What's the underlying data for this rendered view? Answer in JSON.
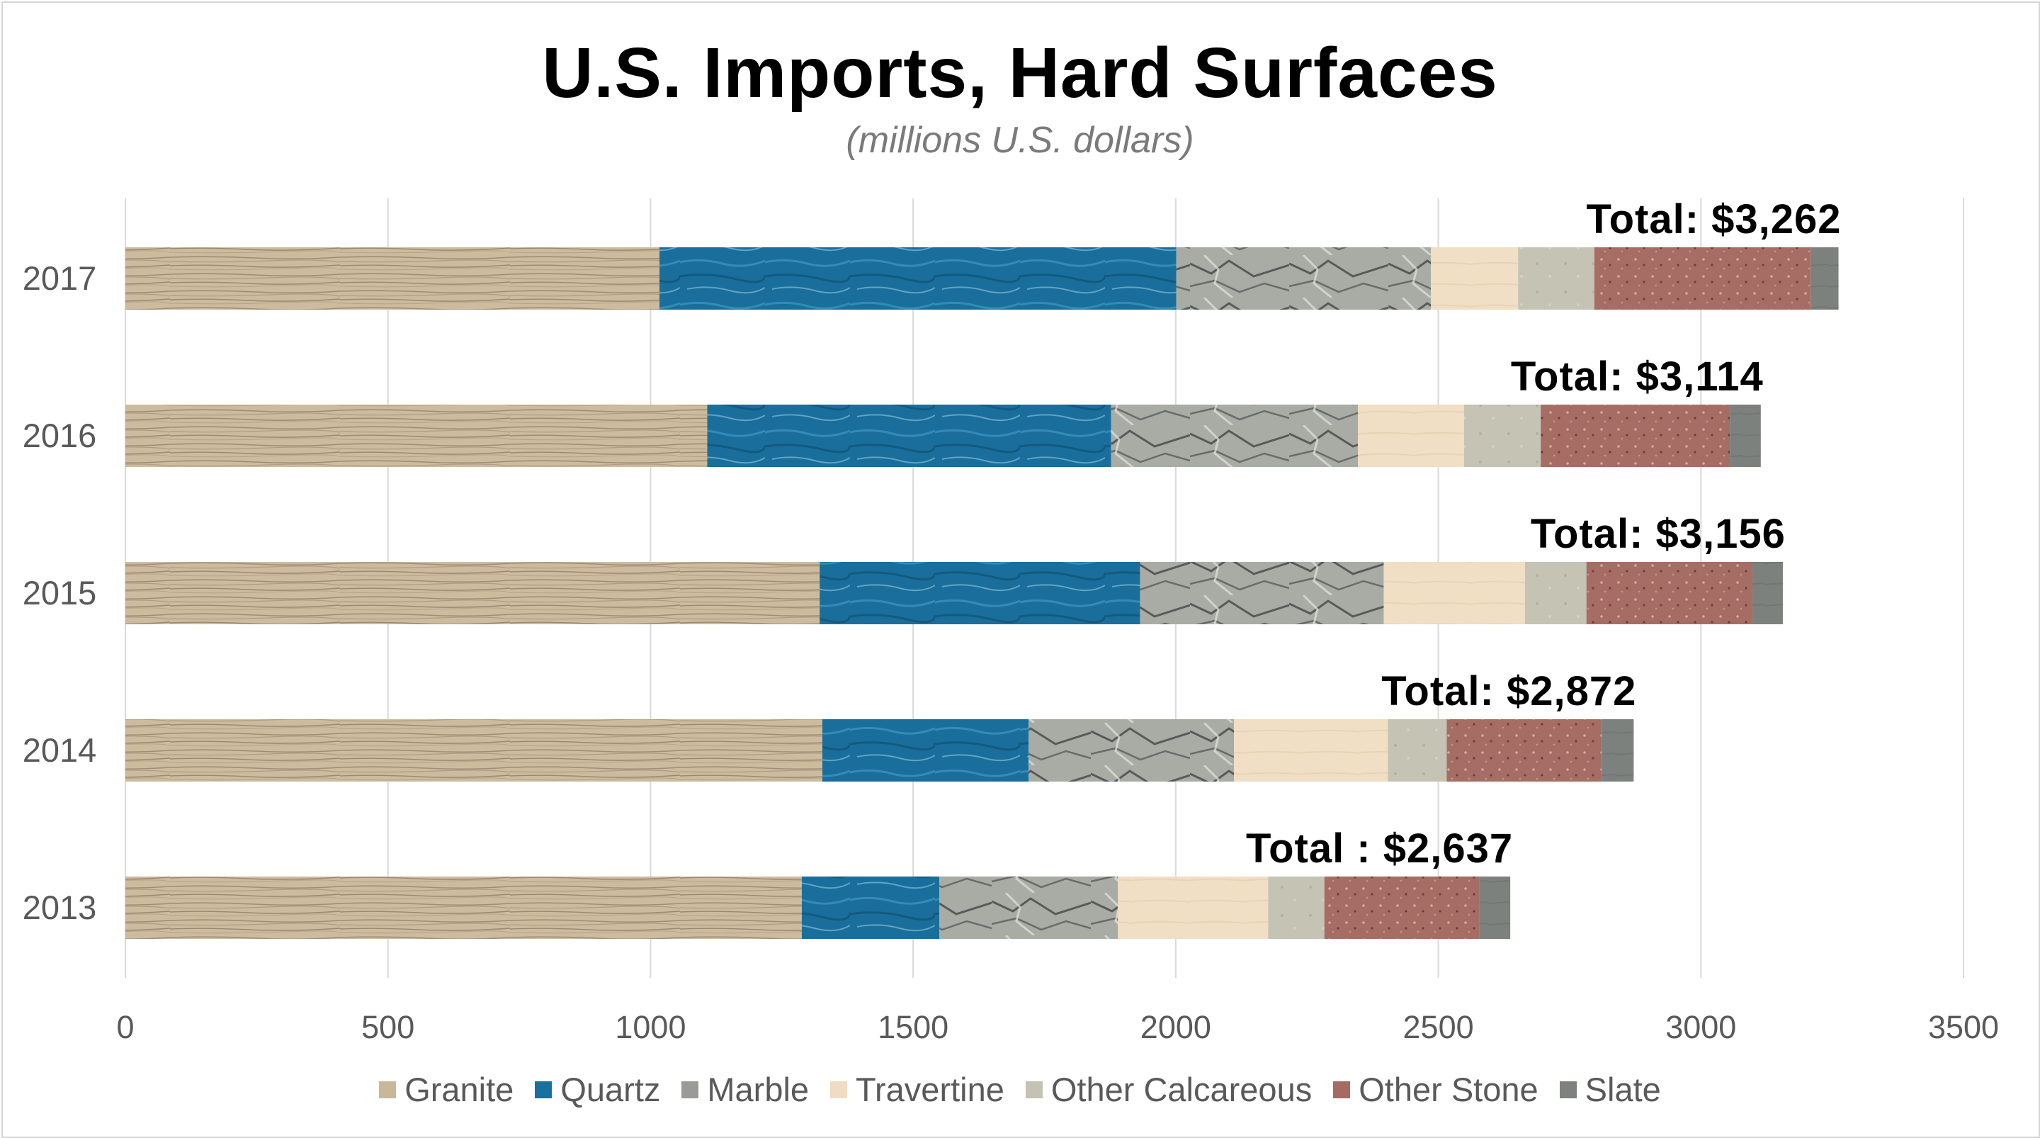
{
  "title": "U.S. Imports, Hard Surfaces",
  "subtitle": "(millions U.S. dollars)",
  "chart_data": {
    "type": "bar",
    "orientation": "horizontal",
    "stacked": true,
    "categories": [
      "2017",
      "2016",
      "2015",
      "2014",
      "2013"
    ],
    "series": [
      {
        "name": "Granite",
        "color": "#c9b79a",
        "values": [
          1017,
          1108,
          1322,
          1327,
          1288
        ]
      },
      {
        "name": "Quartz",
        "color": "#1a6f9c",
        "values": [
          984,
          769,
          610,
          393,
          262
        ]
      },
      {
        "name": "Marble",
        "color": "#9a9a96",
        "values": [
          485,
          470,
          464,
          391,
          340
        ]
      },
      {
        "name": "Travertine",
        "color": "#efdcc2",
        "values": [
          166,
          202,
          269,
          293,
          286
        ]
      },
      {
        "name": "Other Calcareous",
        "color": "#c3c2b3",
        "values": [
          145,
          146,
          117,
          112,
          107
        ]
      },
      {
        "name": "Other Stone",
        "color": "#a56b63",
        "values": [
          412,
          360,
          316,
          295,
          295
        ]
      },
      {
        "name": "Slate",
        "color": "#7d827f",
        "values": [
          53,
          59,
          58,
          61,
          59
        ]
      }
    ],
    "totals": [
      "Total: $3,262",
      "Total: $3,114",
      "Total: $3,156",
      "Total: $2,872",
      "Total : $2,637"
    ],
    "xlim": [
      0,
      3500
    ],
    "xticks": [
      "0",
      "500",
      "1000",
      "1500",
      "2000",
      "2500",
      "3000",
      "3500"
    ],
    "grid": true,
    "legend": "bottom"
  }
}
